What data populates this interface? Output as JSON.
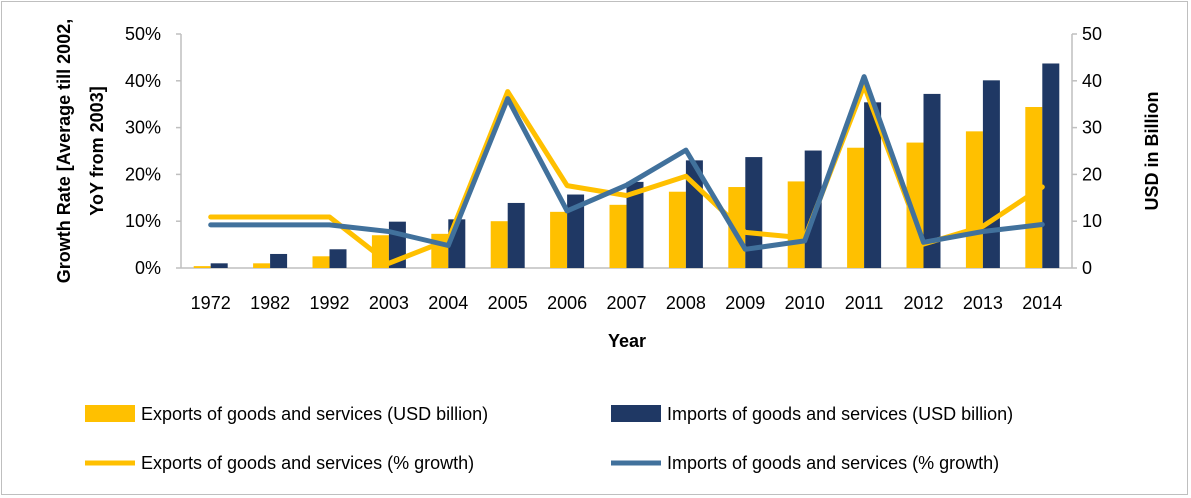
{
  "chart_data": {
    "type": "bar",
    "categories": [
      "1972",
      "1982",
      "1992",
      "2003",
      "2004",
      "2005",
      "2006",
      "2007",
      "2008",
      "2009",
      "2010",
      "2011",
      "2012",
      "2013",
      "2014"
    ],
    "xlabel": "Year",
    "ylabel": "Growth Rate [Average till 2002, YoY from 2003]",
    "ylabel_lines": [
      "Growth Rate [Average till 2002,",
      "YoY from 2003]"
    ],
    "y2label": "USD in Billion",
    "ylim": [
      0,
      50
    ],
    "y2lim": [
      0,
      50
    ],
    "yticks": [
      "0%",
      "10%",
      "20%",
      "30%",
      "40%",
      "50%"
    ],
    "y2ticks": [
      "0",
      "10",
      "20",
      "30",
      "40",
      "50"
    ],
    "grid": false,
    "legend_position": "bottom",
    "series": [
      {
        "name": "Exports of goods and services (USD billion)",
        "kind": "bar",
        "axis": "right",
        "color": "#FFC000",
        "values": [
          0.4,
          1.0,
          2.5,
          7.0,
          7.3,
          10.0,
          12.0,
          13.5,
          16.3,
          17.3,
          18.5,
          25.7,
          26.8,
          29.2,
          34.4
        ]
      },
      {
        "name": "Imports of goods and services (USD billion)",
        "kind": "bar",
        "axis": "right",
        "color": "#1F3864",
        "values": [
          1.0,
          3.0,
          4.0,
          9.9,
          10.4,
          13.9,
          15.7,
          18.4,
          23.0,
          23.7,
          25.1,
          35.4,
          37.2,
          40.1,
          43.7
        ]
      },
      {
        "name": "Exports of goods and services (% growth)",
        "kind": "line",
        "axis": "left",
        "color": "#FFC000",
        "values": [
          10.9,
          10.9,
          10.9,
          1.0,
          6.0,
          37.7,
          17.6,
          15.5,
          19.6,
          7.6,
          6.4,
          39.0,
          5.1,
          8.9,
          17.3
        ]
      },
      {
        "name": "Imports of goods and services (% growth)",
        "kind": "line",
        "axis": "left",
        "color": "#41719C",
        "values": [
          9.2,
          9.2,
          9.2,
          7.8,
          4.8,
          36.2,
          12.2,
          17.7,
          25.2,
          4.0,
          5.8,
          40.9,
          5.5,
          7.8,
          9.3
        ]
      }
    ]
  }
}
